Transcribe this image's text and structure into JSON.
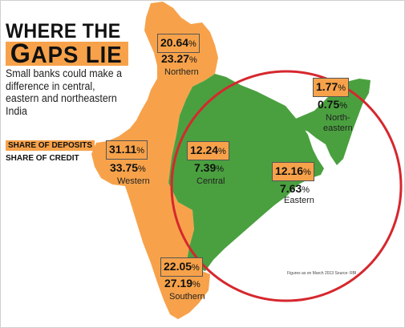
{
  "title": {
    "line1": "WHERE THE",
    "line2_first": "G",
    "line2_rest": "APS LIE"
  },
  "subtitle": "Small banks could make a difference in central, eastern and northeastern India",
  "legend": {
    "deposits": "SHARE OF DEPOSITS",
    "credit": "SHARE OF CREDIT"
  },
  "colors": {
    "orange": "#f7a24a",
    "green": "#4aa03f",
    "circle": "#d6272e"
  },
  "regions": {
    "northern": {
      "name": "Northern",
      "deposits": "20.64",
      "credit": "23.27",
      "unit": "%"
    },
    "western": {
      "name": "Western",
      "deposits": "31.11",
      "credit": "33.75",
      "unit": "%"
    },
    "central": {
      "name": "Central",
      "deposits": "12.24",
      "credit": "7.39",
      "unit": "%"
    },
    "eastern": {
      "name": "Eastern",
      "deposits": "12.16",
      "credit": "7.63",
      "unit": "%"
    },
    "northeastern": {
      "name_line1": "North-",
      "name_line2": "eastern",
      "deposits": "1.77",
      "credit": "0.75",
      "unit": "%"
    },
    "southern": {
      "name": "Southern",
      "deposits": "22.05",
      "credit": "27.19",
      "unit": "%"
    }
  },
  "note": "Figures as on March 2013   Source: RBI"
}
